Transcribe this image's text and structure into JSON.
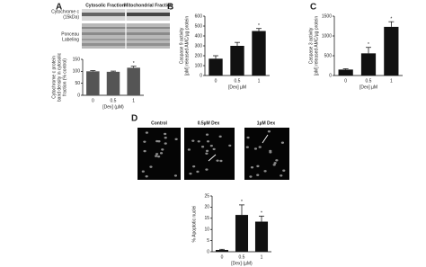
{
  "panels": [
    "A",
    "B",
    "C",
    "D"
  ],
  "blot": {
    "rows": [
      "Cytochrome c",
      "(15kDa)",
      "Ponceau",
      "Labeling"
    ],
    "columns": [
      "Cytosolic Fraction",
      "Mitochondrial Fraction"
    ]
  },
  "micrographs": [
    "Control",
    "0.5µM Dex",
    "1µM Dex"
  ],
  "chart_data": [
    {
      "type": "bar",
      "ylabel": [
        "Cytochrome c protein",
        "band density in cytosolic",
        "fraction (% control)"
      ],
      "xlabel": "[Dex] (µM)",
      "categories": [
        "0",
        "0.5",
        "1"
      ],
      "values": [
        100,
        98,
        115
      ],
      "errors": [
        3,
        3,
        6
      ],
      "stars": [
        null,
        null,
        "*"
      ],
      "color": "#555555",
      "ylim": [
        0,
        150
      ],
      "yticks": [
        0,
        50,
        100,
        150
      ]
    },
    {
      "type": "bar",
      "ylabel": [
        "Caspase 9 activity",
        "[pM] released AMC/µg protein"
      ],
      "xlabel": "[Dex] µM",
      "categories": [
        "0",
        "0.5",
        "1"
      ],
      "values": [
        170,
        300,
        450
      ],
      "errors": [
        30,
        35,
        25
      ],
      "stars": [
        null,
        null,
        "*"
      ],
      "color": "#111111",
      "ylim": [
        0,
        600
      ],
      "yticks": [
        0,
        100,
        200,
        300,
        400,
        500,
        600
      ]
    },
    {
      "type": "bar",
      "ylabel": [
        "Caspase 3 activity",
        "[pM] released AMC/µg protein"
      ],
      "xlabel": "[Dex] µM",
      "categories": [
        "0",
        "0.5",
        "1"
      ],
      "values": [
        150,
        560,
        1230
      ],
      "errors": [
        20,
        150,
        130
      ],
      "stars": [
        null,
        "*",
        "*"
      ],
      "color": "#111111",
      "ylim": [
        0,
        1500
      ],
      "yticks": [
        0,
        500,
        1000,
        1500
      ]
    },
    {
      "type": "bar",
      "ylabel": [
        "% Apoptotic nuclei"
      ],
      "xlabel": "[Dex] (µM)",
      "categories": [
        "0",
        "0.5",
        "1"
      ],
      "values": [
        0.8,
        16.5,
        13.5
      ],
      "errors": [
        0.3,
        4.5,
        2.5
      ],
      "stars": [
        null,
        "*",
        "*"
      ],
      "color": "#111111",
      "ylim": [
        0,
        25
      ],
      "yticks": [
        0,
        5,
        10,
        15,
        20,
        25
      ]
    }
  ]
}
